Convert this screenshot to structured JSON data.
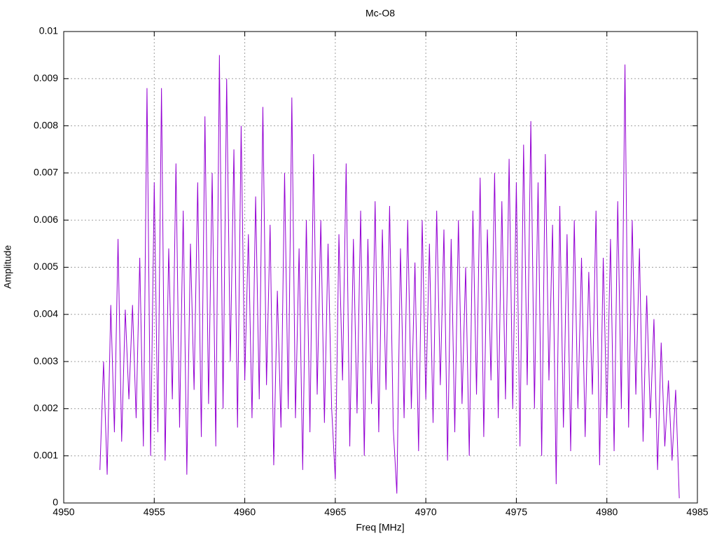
{
  "chart_data": {
    "type": "line",
    "title": "Mc-O8",
    "x_label": "Freq [MHz]",
    "y_label": "Amplitude",
    "xlim": [
      4950,
      4985
    ],
    "xticks": [
      4950,
      4955,
      4960,
      4965,
      4970,
      4975,
      4980,
      4985
    ],
    "ylim": [
      0,
      0.01
    ],
    "yticks": [
      0,
      0.001,
      0.002,
      0.003,
      0.004,
      0.005,
      0.006,
      0.007,
      0.008,
      0.009,
      0.01
    ],
    "grid": true,
    "series": [
      {
        "color": "#9400d3",
        "x": [
          4952,
          4952.2,
          4952.4,
          4952.6,
          4952.8,
          4953,
          4953.2,
          4953.4,
          4953.6,
          4953.8,
          4954,
          4954.2,
          4954.4,
          4954.6,
          4954.8,
          4955,
          4955.2,
          4955.4,
          4955.6,
          4955.8,
          4956,
          4956.2,
          4956.4,
          4956.6,
          4956.8,
          4957,
          4957.2,
          4957.4,
          4957.6,
          4957.8,
          4958,
          4958.2,
          4958.4,
          4958.6,
          4958.8,
          4959,
          4959.2,
          4959.4,
          4959.6,
          4959.8,
          4960,
          4960.2,
          4960.4,
          4960.6,
          4960.8,
          4961,
          4961.2,
          4961.4,
          4961.6,
          4961.8,
          4962,
          4962.2,
          4962.4,
          4962.6,
          4962.8,
          4963,
          4963.2,
          4963.4,
          4963.6,
          4963.8,
          4964,
          4964.2,
          4964.4,
          4964.6,
          4964.8,
          4965,
          4965.2,
          4965.4,
          4965.6,
          4965.8,
          4966,
          4966.2,
          4966.4,
          4966.6,
          4966.8,
          4967,
          4967.2,
          4967.4,
          4967.6,
          4967.8,
          4968,
          4968.2,
          4968.4,
          4968.6,
          4968.8,
          4969,
          4969.2,
          4969.4,
          4969.6,
          4969.8,
          4970,
          4970.2,
          4970.4,
          4970.6,
          4970.8,
          4971,
          4971.2,
          4971.4,
          4971.6,
          4971.8,
          4972,
          4972.2,
          4972.4,
          4972.6,
          4972.8,
          4973,
          4973.2,
          4973.4,
          4973.6,
          4973.8,
          4974,
          4974.2,
          4974.4,
          4974.6,
          4974.8,
          4975,
          4975.2,
          4975.4,
          4975.6,
          4975.8,
          4976,
          4976.2,
          4976.4,
          4976.6,
          4976.8,
          4977,
          4977.2,
          4977.4,
          4977.6,
          4977.8,
          4978,
          4978.2,
          4978.4,
          4978.6,
          4978.8,
          4979,
          4979.2,
          4979.4,
          4979.6,
          4979.8,
          4980,
          4980.2,
          4980.4,
          4980.6,
          4980.8,
          4981,
          4981.2,
          4981.4,
          4981.6,
          4981.8,
          4982,
          4982.2,
          4982.4,
          4982.6,
          4982.8,
          4983,
          4983.2,
          4983.4,
          4983.6,
          4983.8,
          4984
        ],
        "values": [
          0.0007,
          0.003,
          0.0006,
          0.0042,
          0.0015,
          0.0056,
          0.0013,
          0.0041,
          0.0022,
          0.0042,
          0.0018,
          0.0052,
          0.0012,
          0.0088,
          0.001,
          0.0068,
          0.0015,
          0.0088,
          0.0009,
          0.0054,
          0.0022,
          0.0072,
          0.0016,
          0.0062,
          0.0006,
          0.0055,
          0.0024,
          0.0068,
          0.0014,
          0.0082,
          0.0021,
          0.007,
          0.0012,
          0.0095,
          0.002,
          0.009,
          0.003,
          0.0075,
          0.0016,
          0.008,
          0.0026,
          0.0057,
          0.0018,
          0.0065,
          0.0022,
          0.0084,
          0.0025,
          0.0059,
          0.0008,
          0.0045,
          0.0016,
          0.007,
          0.002,
          0.0086,
          0.0018,
          0.0054,
          0.0007,
          0.006,
          0.0015,
          0.0074,
          0.0023,
          0.006,
          0.0017,
          0.0055,
          0.002,
          0.0005,
          0.0057,
          0.0026,
          0.0072,
          0.0012,
          0.0056,
          0.0019,
          0.0062,
          0.001,
          0.0056,
          0.0021,
          0.0064,
          0.0015,
          0.0058,
          0.0024,
          0.0063,
          0.0016,
          0.0002,
          0.0054,
          0.0018,
          0.006,
          0.002,
          0.0051,
          0.0011,
          0.006,
          0.0022,
          0.0055,
          0.0017,
          0.0062,
          0.0025,
          0.0058,
          0.0009,
          0.0056,
          0.0015,
          0.006,
          0.0021,
          0.005,
          0.001,
          0.0062,
          0.0023,
          0.0069,
          0.0014,
          0.0058,
          0.0026,
          0.007,
          0.0018,
          0.0064,
          0.0022,
          0.0073,
          0.002,
          0.0068,
          0.0012,
          0.0076,
          0.0025,
          0.0081,
          0.002,
          0.0068,
          0.001,
          0.0074,
          0.0026,
          0.0059,
          0.0004,
          0.0063,
          0.0016,
          0.0057,
          0.0011,
          0.006,
          0.002,
          0.0052,
          0.0014,
          0.0049,
          0.0023,
          0.0062,
          0.0008,
          0.0052,
          0.0018,
          0.0056,
          0.0011,
          0.0064,
          0.002,
          0.0093,
          0.0016,
          0.006,
          0.0023,
          0.0054,
          0.0013,
          0.0044,
          0.0018,
          0.0039,
          0.0007,
          0.0034,
          0.0012,
          0.0026,
          0.0009,
          0.0024,
          0.0001
        ]
      }
    ]
  }
}
